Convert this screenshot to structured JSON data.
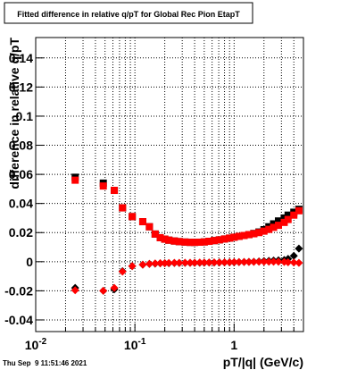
{
  "chart_data": {
    "type": "scatter",
    "title": "Fitted difference in relative q/pT for Global Rec Pion EtapT",
    "x_label": "pT/|q| (GeV/c)",
    "y_label": "difference in relative q/pT",
    "footer": "Thu Sep  9 11:51:46 2021",
    "x_log": true,
    "grid": true,
    "xlim": [
      0.01,
      5
    ],
    "ylim": [
      -0.048,
      0.154
    ],
    "xticks": [
      {
        "value": 0.01,
        "label": "10",
        "exponent": "-2"
      },
      {
        "value": 0.1,
        "label": "10",
        "exponent": "-1"
      },
      1
    ],
    "xminorticks": [
      0.02,
      0.03,
      0.04,
      0.05,
      0.06,
      0.07,
      0.08,
      0.09,
      0.2,
      0.3,
      0.4,
      0.5,
      0.6,
      0.7,
      0.8,
      0.9,
      2,
      3,
      4,
      5
    ],
    "yticks": [
      -0.04,
      -0.02,
      0,
      0.02,
      0.04,
      0.06,
      0.08,
      0.1,
      0.12,
      0.14
    ],
    "x": [
      0.025,
      0.048,
      0.062,
      0.075,
      0.094,
      0.12,
      0.14,
      0.16,
      0.18,
      0.2,
      0.22,
      0.25,
      0.28,
      0.32,
      0.36,
      0.4,
      0.45,
      0.5,
      0.56,
      0.63,
      0.71,
      0.8,
      0.9,
      1.0,
      1.12,
      1.26,
      1.41,
      1.58,
      1.78,
      2.0,
      2.24,
      2.5,
      2.8,
      3.2,
      3.5,
      4.0,
      4.5
    ],
    "series": [
      {
        "color": "#000000",
        "marker": "square",
        "values": [
          0.058,
          0.054,
          0.049,
          0.037,
          0.031,
          0.0275,
          0.024,
          0.019,
          0.0165,
          0.0155,
          0.0148,
          0.0142,
          0.0138,
          0.0135,
          0.0133,
          0.0133,
          0.0134,
          0.0136,
          0.014,
          0.0145,
          0.015,
          0.0156,
          0.0162,
          0.0168,
          0.0174,
          0.018,
          0.0186,
          0.0194,
          0.0204,
          0.022,
          0.024,
          0.026,
          0.028,
          0.03,
          0.032,
          0.034,
          0.036
        ]
      },
      {
        "color": "#000000",
        "marker": "diamond",
        "values": [
          -0.018,
          -0.02,
          -0.019,
          -0.0065,
          -0.003,
          -0.002,
          -0.0015,
          -0.0013,
          -0.0011,
          -0.001,
          -0.001,
          -0.0009,
          -0.0009,
          -0.0008,
          -0.0008,
          -0.0008,
          -0.0007,
          -0.0007,
          -0.0006,
          -0.0006,
          -0.0005,
          -0.0005,
          -0.0004,
          -0.0004,
          -0.0003,
          -0.0002,
          -0.0001,
          0,
          0.0002,
          0.0004,
          0.0006,
          0.0008,
          0.001,
          0.0012,
          0.002,
          0.004,
          0.009
        ]
      },
      {
        "color": "#ff0000",
        "marker": "square",
        "values": [
          0.056,
          0.052,
          0.049,
          0.037,
          0.031,
          0.0275,
          0.024,
          0.019,
          0.0165,
          0.0155,
          0.0148,
          0.0142,
          0.0138,
          0.0135,
          0.0133,
          0.0133,
          0.0134,
          0.0136,
          0.014,
          0.0145,
          0.015,
          0.0156,
          0.0162,
          0.0168,
          0.0174,
          0.018,
          0.0186,
          0.0192,
          0.02,
          0.021,
          0.0222,
          0.0236,
          0.025,
          0.027,
          0.029,
          0.032,
          0.035
        ]
      },
      {
        "color": "#ff0000",
        "marker": "diamond",
        "values": [
          -0.0196,
          -0.02,
          -0.018,
          -0.0068,
          -0.003,
          -0.002,
          -0.0015,
          -0.0012,
          -0.001,
          -0.001,
          -0.0009,
          -0.0008,
          -0.0008,
          -0.0007,
          -0.0007,
          -0.0007,
          -0.0006,
          -0.0006,
          -0.0006,
          -0.0005,
          -0.0005,
          -0.0004,
          -0.0004,
          -0.0003,
          -0.0003,
          -0.0002,
          -0.0002,
          -0.0001,
          0,
          0,
          0,
          0,
          0,
          -0.0002,
          -0.0004,
          -0.0006,
          -0.0008
        ]
      }
    ]
  }
}
